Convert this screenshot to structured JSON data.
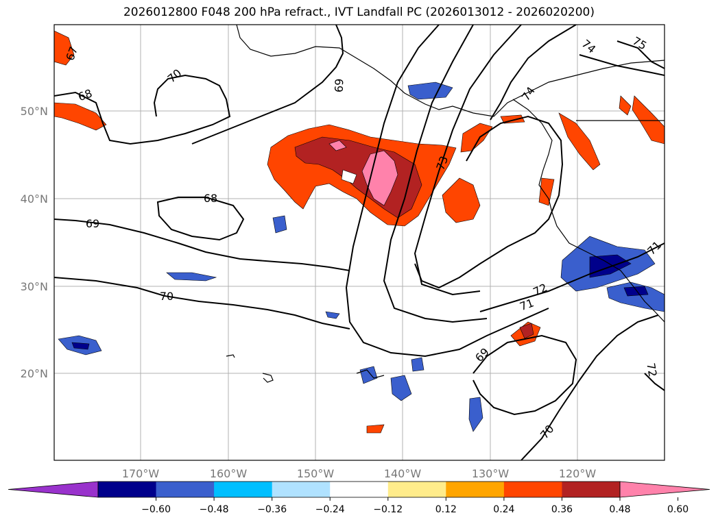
{
  "title": "2026012800 F048 200 hPa refract., IVT Landfall PC (2026013012 - 2026020200)",
  "lat_labels": [
    "50°N",
    "40°N",
    "30°N",
    "20°N"
  ],
  "lon_labels": [
    "170°W",
    "160°W",
    "150°W",
    "140°W",
    "130°W",
    "120°W"
  ],
  "contour_labels": [
    "67",
    "68",
    "70",
    "69",
    "68",
    "69",
    "70",
    "73",
    "74",
    "74",
    "75",
    "72",
    "71",
    "71",
    "69",
    "70",
    "72"
  ],
  "colorbar": {
    "colors": [
      "#9932cc",
      "#00008b",
      "#3a5fcd",
      "#00bfff",
      "#b0e2ff",
      "#ffffff",
      "#ffec8b",
      "#ffa500",
      "#ff4500",
      "#b22222",
      "#ff82ab"
    ],
    "ticks": [
      "−0.60",
      "−0.48",
      "−0.36",
      "−0.24",
      "−0.12",
      "0.12",
      "0.24",
      "0.36",
      "0.48",
      "0.60"
    ]
  }
}
